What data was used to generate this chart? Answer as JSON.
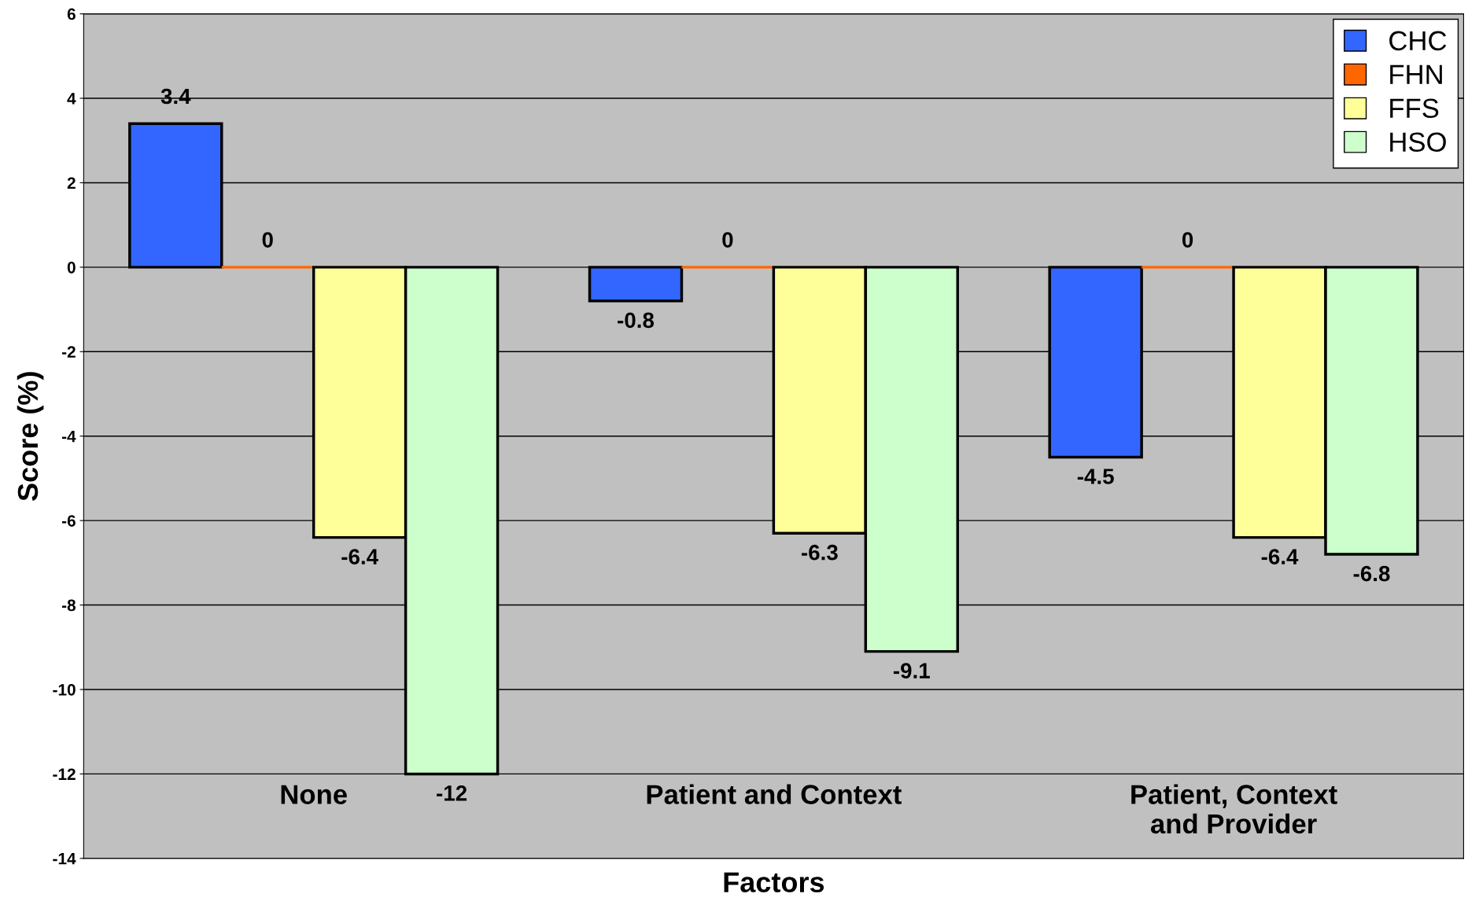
{
  "chart_data": {
    "type": "bar",
    "xlabel": "Factors",
    "ylabel": "Score (%)",
    "categories": [
      "None",
      "Patient and Context",
      "Patient, Context\nand Provider"
    ],
    "series": [
      {
        "name": "CHC",
        "color": "#3366ff",
        "values": [
          3.4,
          -0.8,
          -4.5
        ]
      },
      {
        "name": "FHN",
        "color": "#ff6600",
        "values": [
          0,
          0,
          0
        ]
      },
      {
        "name": "FFS",
        "color": "#ffff99",
        "values": [
          -6.4,
          -6.3,
          -6.4
        ]
      },
      {
        "name": "HSO",
        "color": "#ccffcc",
        "values": [
          -12,
          -9.1,
          -6.8
        ]
      }
    ],
    "ylim": [
      -14,
      6
    ],
    "yticks": [
      -14,
      -12,
      -10,
      -8,
      -6,
      -4,
      -2,
      0,
      2,
      4,
      6
    ],
    "grid": "y",
    "legend": "top right",
    "data_labels": true
  }
}
